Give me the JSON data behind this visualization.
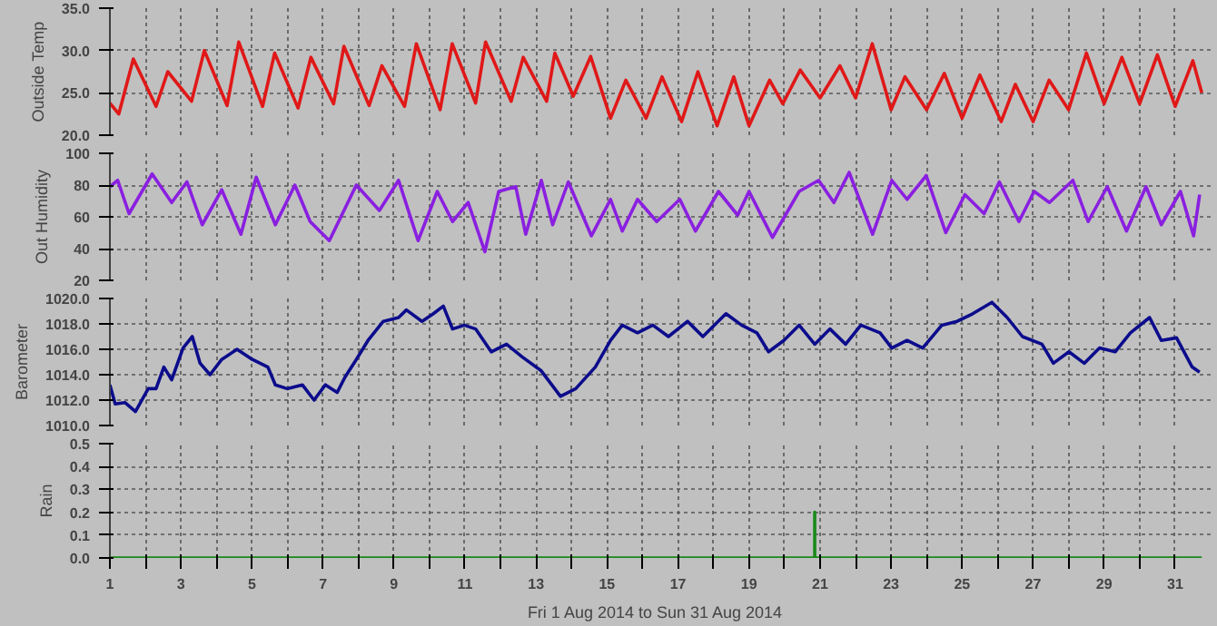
{
  "chart_data": [
    {
      "type": "line",
      "ylabel": "Outside Temp",
      "xlim": [
        1,
        32
      ],
      "ylim": [
        20,
        35
      ],
      "grid": true,
      "tick_labels": "y",
      "xticks": [
        1,
        {
          "value": 2,
          "label": null
        },
        3,
        {
          "value": 4,
          "label": null
        },
        5,
        {
          "value": 6,
          "label": null
        },
        7,
        {
          "value": 8,
          "label": null
        },
        9,
        {
          "value": 10,
          "label": null
        },
        11,
        {
          "value": 12,
          "label": null
        },
        13,
        {
          "value": 14,
          "label": null
        },
        15,
        {
          "value": 16,
          "label": null
        },
        17,
        {
          "value": 18,
          "label": null
        },
        19,
        {
          "value": 20,
          "label": null
        },
        21,
        {
          "value": 22,
          "label": null
        },
        23,
        {
          "value": 24,
          "label": null
        },
        25,
        {
          "value": 26,
          "label": null
        },
        27,
        {
          "value": 28,
          "label": null
        },
        29,
        {
          "value": 30,
          "label": null
        },
        31
      ],
      "yticks": [
        {
          "value": 20,
          "label": "20.0"
        },
        {
          "value": 25,
          "label": "25.0"
        },
        {
          "value": 30,
          "label": "30.0"
        },
        {
          "value": 35,
          "label": "35.0"
        }
      ],
      "series": [
        {
          "color": "#e01818",
          "x": [
            1.0,
            1.25,
            1.66,
            2.3,
            2.63,
            3.3,
            3.66,
            4.3,
            4.63,
            5.3,
            5.64,
            6.3,
            6.66,
            7.3,
            7.59,
            8.3,
            8.66,
            9.3,
            9.63,
            10.3,
            10.64,
            11.3,
            11.58,
            12.3,
            12.64,
            13.3,
            13.53,
            14.05,
            14.54,
            15.1,
            15.53,
            16.1,
            16.55,
            17.1,
            17.56,
            18.1,
            18.57,
            19.0,
            19.58,
            19.95,
            20.44,
            21.0,
            21.56,
            22.0,
            22.47,
            23.0,
            23.39,
            24.0,
            24.5,
            25.0,
            25.5,
            26.1,
            26.5,
            27.0,
            27.45,
            28.0,
            28.5,
            29.0,
            29.5,
            30.0,
            30.5,
            31.0,
            31.5,
            31.75
          ],
          "values": [
            23.8,
            22.5,
            29.0,
            23.4,
            27.5,
            24.0,
            30.0,
            23.5,
            31.0,
            23.4,
            29.7,
            23.2,
            29.2,
            23.7,
            30.5,
            23.5,
            28.2,
            23.4,
            30.8,
            23.0,
            30.8,
            23.8,
            31.0,
            24.0,
            29.2,
            24.0,
            29.7,
            24.6,
            29.3,
            22.0,
            26.5,
            22.0,
            26.9,
            21.6,
            27.5,
            21.1,
            26.9,
            21.1,
            26.5,
            23.7,
            27.7,
            24.4,
            28.2,
            24.4,
            30.8,
            23.0,
            26.9,
            23.0,
            27.3,
            22.0,
            27.1,
            21.6,
            26.0,
            21.6,
            26.5,
            23.0,
            29.7,
            23.7,
            29.2,
            23.7,
            29.5,
            23.4,
            28.8,
            25.0
          ]
        }
      ]
    },
    {
      "type": "line",
      "ylabel": "Out Humidity",
      "xlim": [
        1,
        32
      ],
      "ylim": [
        20,
        100
      ],
      "grid": true,
      "tick_labels": "y",
      "xticks": [
        1,
        {
          "value": 2,
          "label": null
        },
        3,
        {
          "value": 4,
          "label": null
        },
        5,
        {
          "value": 6,
          "label": null
        },
        7,
        {
          "value": 8,
          "label": null
        },
        9,
        {
          "value": 10,
          "label": null
        },
        11,
        {
          "value": 12,
          "label": null
        },
        13,
        {
          "value": 14,
          "label": null
        },
        15,
        {
          "value": 16,
          "label": null
        },
        17,
        {
          "value": 18,
          "label": null
        },
        19,
        {
          "value": 20,
          "label": null
        },
        21,
        {
          "value": 22,
          "label": null
        },
        23,
        {
          "value": 24,
          "label": null
        },
        25,
        {
          "value": 26,
          "label": null
        },
        27,
        {
          "value": 28,
          "label": null
        },
        29,
        {
          "value": 30,
          "label": null
        },
        31
      ],
      "yticks": [
        20,
        40,
        60,
        80,
        100
      ],
      "series": [
        {
          "color": "#8a1fe0",
          "x": [
            1.0,
            1.22,
            1.54,
            2.19,
            2.74,
            3.17,
            3.6,
            4.15,
            4.69,
            5.12,
            5.66,
            6.21,
            6.64,
            7.18,
            7.94,
            8.59,
            9.13,
            9.68,
            10.22,
            10.65,
            11.09,
            11.56,
            11.95,
            12.43,
            12.71,
            13.15,
            13.47,
            13.91,
            14.56,
            15.1,
            15.43,
            15.86,
            16.4,
            17.05,
            17.49,
            18.14,
            18.68,
            19.0,
            19.66,
            20.41,
            20.96,
            21.39,
            21.82,
            22.48,
            23.02,
            23.45,
            23.99,
            24.54,
            25.08,
            25.62,
            26.05,
            26.6,
            27.03,
            27.46,
            28.12,
            28.55,
            29.09,
            29.63,
            30.18,
            30.61,
            31.15,
            31.52,
            31.69
          ],
          "values": [
            79,
            83,
            62,
            87,
            69,
            82,
            55,
            77,
            49,
            85,
            55,
            80,
            57,
            45,
            80,
            64,
            83,
            45,
            76,
            57,
            69,
            38,
            76,
            79,
            49,
            83,
            55,
            82,
            48,
            71,
            51,
            71,
            57,
            71,
            51,
            76,
            61,
            76,
            47,
            76,
            83,
            69,
            88,
            49,
            83,
            71,
            86,
            50,
            74,
            62,
            82,
            57,
            76,
            69,
            83,
            57,
            79,
            51,
            79,
            55,
            76,
            48,
            74
          ]
        }
      ]
    },
    {
      "type": "line",
      "ylabel": "Barometer",
      "xlim": [
        1,
        32
      ],
      "ylim": [
        1010,
        1020
      ],
      "grid": true,
      "tick_labels": "y",
      "xticks": [
        1,
        {
          "value": 2,
          "label": null
        },
        3,
        {
          "value": 4,
          "label": null
        },
        5,
        {
          "value": 6,
          "label": null
        },
        7,
        {
          "value": 8,
          "label": null
        },
        9,
        {
          "value": 10,
          "label": null
        },
        11,
        {
          "value": 12,
          "label": null
        },
        13,
        {
          "value": 14,
          "label": null
        },
        15,
        {
          "value": 16,
          "label": null
        },
        17,
        {
          "value": 18,
          "label": null
        },
        19,
        {
          "value": 20,
          "label": null
        },
        21,
        {
          "value": 22,
          "label": null
        },
        23,
        {
          "value": 24,
          "label": null
        },
        25,
        {
          "value": 26,
          "label": null
        },
        27,
        {
          "value": 28,
          "label": null
        },
        29,
        {
          "value": 30,
          "label": null
        },
        31
      ],
      "yticks": [
        {
          "value": 1010,
          "label": "1010.0"
        },
        {
          "value": 1012,
          "label": "1012.0"
        },
        {
          "value": 1014,
          "label": "1014.0"
        },
        {
          "value": 1016,
          "label": "1016.0"
        },
        {
          "value": 1018,
          "label": "1018.0"
        },
        {
          "value": 1020,
          "label": "1020.0"
        }
      ],
      "series": [
        {
          "color": "#0c0c8c",
          "x": [
            1.0,
            1.15,
            1.43,
            1.72,
            2.08,
            2.3,
            2.52,
            2.74,
            3.06,
            3.32,
            3.54,
            3.82,
            4.15,
            4.58,
            5.01,
            5.45,
            5.66,
            5.99,
            6.42,
            6.75,
            7.07,
            7.4,
            7.62,
            7.94,
            8.27,
            8.7,
            9.13,
            9.35,
            9.79,
            10.11,
            10.39,
            10.65,
            10.98,
            11.3,
            11.74,
            12.17,
            12.61,
            13.15,
            13.69,
            14.12,
            14.67,
            15.1,
            15.43,
            15.86,
            16.29,
            16.73,
            17.27,
            17.7,
            18.35,
            18.79,
            19.22,
            19.55,
            19.98,
            20.41,
            20.85,
            21.28,
            21.72,
            22.15,
            22.69,
            23.02,
            23.45,
            23.89,
            24.43,
            24.86,
            25.3,
            25.84,
            26.27,
            26.7,
            27.25,
            27.57,
            28.01,
            28.44,
            28.87,
            29.31,
            29.74,
            30.28,
            30.61,
            31.04,
            31.48,
            31.69
          ],
          "values": [
            1013.2,
            1011.7,
            1011.8,
            1011.1,
            1012.9,
            1012.9,
            1014.6,
            1013.6,
            1016.1,
            1017.0,
            1014.9,
            1014.0,
            1015.2,
            1016.0,
            1015.2,
            1014.6,
            1013.2,
            1012.9,
            1013.2,
            1012.0,
            1013.2,
            1012.6,
            1013.8,
            1015.2,
            1016.7,
            1018.2,
            1018.5,
            1019.1,
            1018.2,
            1018.8,
            1019.4,
            1017.6,
            1017.9,
            1017.6,
            1015.8,
            1016.4,
            1015.4,
            1014.3,
            1012.3,
            1012.9,
            1014.6,
            1016.7,
            1017.9,
            1017.3,
            1017.9,
            1017.0,
            1018.2,
            1017.0,
            1018.8,
            1017.9,
            1017.3,
            1015.8,
            1016.7,
            1017.9,
            1016.4,
            1017.6,
            1016.4,
            1017.9,
            1017.3,
            1016.1,
            1016.7,
            1016.1,
            1017.9,
            1018.2,
            1018.8,
            1019.7,
            1018.5,
            1017.0,
            1016.4,
            1014.9,
            1015.8,
            1014.9,
            1016.1,
            1015.8,
            1017.3,
            1018.5,
            1016.7,
            1016.9,
            1014.6,
            1014.2
          ]
        }
      ]
    },
    {
      "type": "line",
      "ylabel": "Rain",
      "xlabel": "Fri 1 Aug 2014  to  Sun 31 Aug 2014",
      "xlim": [
        1,
        32
      ],
      "ylim": [
        0,
        0.5
      ],
      "grid": true,
      "xticks": [
        1,
        {
          "value": 2,
          "label": null
        },
        3,
        {
          "value": 4,
          "label": null
        },
        5,
        {
          "value": 6,
          "label": null
        },
        7,
        {
          "value": 8,
          "label": null
        },
        9,
        {
          "value": 10,
          "label": null
        },
        11,
        {
          "value": 12,
          "label": null
        },
        13,
        {
          "value": 14,
          "label": null
        },
        15,
        {
          "value": 16,
          "label": null
        },
        17,
        {
          "value": 18,
          "label": null
        },
        19,
        {
          "value": 20,
          "label": null
        },
        21,
        {
          "value": 22,
          "label": null
        },
        23,
        {
          "value": 24,
          "label": null
        },
        25,
        {
          "value": 26,
          "label": null
        },
        27,
        {
          "value": 28,
          "label": null
        },
        29,
        {
          "value": 30,
          "label": null
        },
        31
      ],
      "yticks": [
        {
          "value": 0,
          "label": "0.0"
        },
        0.1,
        0.2,
        0.3,
        0.4,
        0.5
      ],
      "series": [
        {
          "color": "#1a8a1a",
          "x": [
            1,
            20.85,
            20.85,
            20.85,
            31.75
          ],
          "values": [
            0,
            0,
            0.2,
            0,
            0
          ]
        }
      ]
    }
  ]
}
